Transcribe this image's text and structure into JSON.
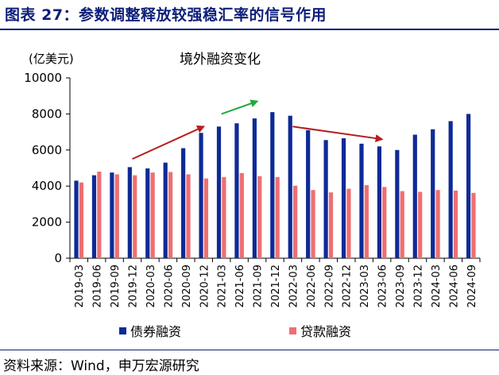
{
  "figure_title": "图表 27：参数调整释放较强稳汇率的信号作用",
  "source": "资料来源：Wind，申万宏源研究",
  "colors": {
    "brand": "#0d1f7a",
    "bond": "#0f2a96",
    "loan": "#ef6f71",
    "arrow_red": "#b81d1d",
    "arrow_green": "#1faa3c"
  },
  "chart_data": {
    "type": "bar",
    "title": "境外融资变化",
    "ylabel": "(亿美元)",
    "xlabel": "",
    "ylim": [
      0,
      10000
    ],
    "yticks": [
      "0",
      "2000",
      "4000",
      "6000",
      "8000",
      "10000"
    ],
    "grid": false,
    "legend_position": "bottom",
    "categories": [
      "2019-03",
      "2019-06",
      "2019-09",
      "2019-12",
      "2020-03",
      "2020-06",
      "2020-09",
      "2020-12",
      "2021-03",
      "2021-06",
      "2021-09",
      "2021-12",
      "2022-03",
      "2022-06",
      "2022-09",
      "2022-12",
      "2023-03",
      "2023-06",
      "2023-09",
      "2023-12",
      "2024-03",
      "2024-06",
      "2024-09"
    ],
    "series": [
      {
        "name": "债券融资",
        "color": "#0f2a96",
        "values": [
          4300,
          4600,
          4750,
          5050,
          4980,
          5300,
          6100,
          6950,
          7300,
          7480,
          7750,
          8100,
          7900,
          7100,
          6550,
          6650,
          6350,
          6200,
          6000,
          6850,
          7150,
          7600,
          8000
        ]
      },
      {
        "name": "贷款融资",
        "color": "#ef6f71",
        "values": [
          4200,
          4800,
          4650,
          4600,
          4750,
          4780,
          4650,
          4420,
          4500,
          4720,
          4550,
          4500,
          4020,
          3780,
          3650,
          3850,
          4050,
          3950,
          3720,
          3680,
          3780,
          3750,
          3620
        ]
      }
    ],
    "annotations": [
      {
        "type": "arrow",
        "color": "#b81d1d",
        "from": {
          "x": "2019-12",
          "y": 5500
        },
        "to": {
          "x": "2020-12",
          "y": 7300
        }
      },
      {
        "type": "arrow",
        "color": "#1faa3c",
        "from": {
          "x": "2021-03",
          "y": 8000
        },
        "to": {
          "x": "2021-09",
          "y": 8700
        }
      },
      {
        "type": "arrow",
        "color": "#b81d1d",
        "from": {
          "x": "2022-03",
          "y": 7300
        },
        "to": {
          "x": "2023-06",
          "y": 6600
        }
      }
    ]
  }
}
